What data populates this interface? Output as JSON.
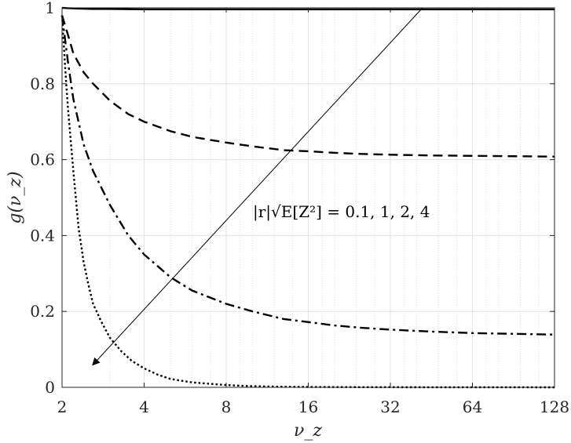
{
  "chart_data": {
    "type": "line",
    "title": "",
    "xlabel": "ν_z",
    "ylabel": "g(ν_z)",
    "x_scale": "log2",
    "xlim": [
      2,
      128
    ],
    "ylim": [
      0,
      1
    ],
    "x_ticks": [
      2,
      4,
      8,
      16,
      32,
      64,
      128
    ],
    "x_tick_labels": [
      "2",
      "4",
      "8",
      "16",
      "32",
      "64",
      "128"
    ],
    "y_ticks": [
      0,
      0.2,
      0.4,
      0.6,
      0.8,
      1
    ],
    "y_tick_labels": [
      "0",
      "0.2",
      "0.4",
      "0.6",
      "0.8",
      "1"
    ],
    "grid": true,
    "minor_grid_x": true,
    "annotation": {
      "text": "|r|√E[Z²] = 0.1, 1, 2, 4",
      "arrow_from": [
        42,
        1.0
      ],
      "arrow_to": [
        2.6,
        0.06
      ]
    },
    "series": [
      {
        "style": "solid",
        "x": [
          2,
          2.1,
          2.3,
          2.6,
          3,
          4,
          6,
          10,
          20,
          40,
          80,
          128
        ],
        "values": [
          1.0,
          0.999,
          0.998,
          0.997,
          0.997,
          0.996,
          0.996,
          0.996,
          0.996,
          0.996,
          0.996,
          0.996
        ]
      },
      {
        "style": "dashed",
        "x": [
          2,
          2.1,
          2.2,
          2.4,
          2.6,
          3,
          3.5,
          4,
          5,
          6,
          8,
          10,
          13,
          16,
          20,
          25,
          32,
          45,
          64,
          90,
          128
        ],
        "values": [
          0.98,
          0.93,
          0.88,
          0.83,
          0.8,
          0.755,
          0.72,
          0.7,
          0.675,
          0.66,
          0.645,
          0.635,
          0.625,
          0.622,
          0.618,
          0.615,
          0.613,
          0.611,
          0.61,
          0.609,
          0.608
        ]
      },
      {
        "style": "dashdot",
        "x": [
          2,
          2.1,
          2.2,
          2.4,
          2.6,
          3,
          3.5,
          4,
          5,
          6,
          8,
          10,
          13,
          16,
          20,
          25,
          32,
          45,
          64,
          90,
          128
        ],
        "values": [
          0.98,
          0.86,
          0.76,
          0.64,
          0.57,
          0.48,
          0.4,
          0.35,
          0.29,
          0.255,
          0.22,
          0.2,
          0.18,
          0.172,
          0.163,
          0.157,
          0.152,
          0.147,
          0.143,
          0.141,
          0.139
        ]
      },
      {
        "style": "dotted",
        "x": [
          2,
          2.05,
          2.1,
          2.2,
          2.3,
          2.4,
          2.5,
          2.6,
          2.8,
          3,
          3.3,
          3.6,
          4,
          4.5,
          5,
          6,
          8,
          10,
          13,
          16,
          24,
          32,
          64,
          128
        ],
        "values": [
          0.98,
          0.85,
          0.74,
          0.57,
          0.42,
          0.33,
          0.27,
          0.22,
          0.17,
          0.13,
          0.095,
          0.07,
          0.05,
          0.033,
          0.022,
          0.013,
          0.006,
          0.003,
          0.0015,
          0.001,
          0.0005,
          0.0003,
          0.0001,
          0.0
        ]
      }
    ]
  }
}
